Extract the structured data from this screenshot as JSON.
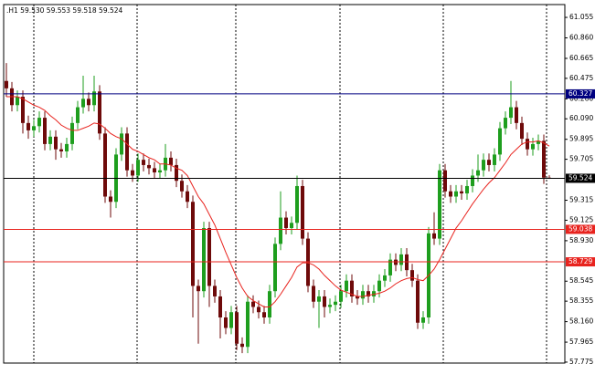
{
  "chart_data": {
    "type": "candlestick",
    "header": ".H1  59.530 59.553 59.518 59.524",
    "ylim": [
      57.766,
      61.177
    ],
    "yticks": [
      61.055,
      {
        "value": 60.86,
        "label": "60.860"
      },
      60.665,
      60.475,
      {
        "value": 60.28,
        "label": "60.280"
      },
      {
        "value": 60.09,
        "label": "60.090"
      },
      59.895,
      59.705,
      59.315,
      59.125,
      {
        "value": 58.93,
        "label": "58.930"
      },
      58.545,
      58.355,
      {
        "value": 58.16,
        "label": "58.160"
      },
      57.965,
      57.775
    ],
    "bull_color": "#1e9e1e",
    "bear_color": "#6e0a0a",
    "open": [
      60.45,
      60.38,
      60.22,
      60.3,
      60.05,
      59.98,
      60.02,
      60.1,
      59.85,
      59.92,
      59.8,
      59.78,
      59.85,
      60.05,
      60.2,
      60.28,
      60.22,
      60.35,
      59.95,
      59.35,
      59.3,
      59.75,
      59.95,
      59.6,
      59.55,
      59.7,
      59.65,
      59.62,
      59.58,
      59.6,
      59.72,
      59.65,
      59.5,
      59.4,
      59.3,
      58.5,
      58.45,
      59.05,
      58.5,
      58.4,
      58.2,
      58.1,
      58.25,
      57.95,
      57.92,
      58.35,
      58.3,
      58.25,
      58.2,
      58.45,
      58.9,
      59.15,
      59.05,
      59.1,
      59.45,
      58.95,
      58.5,
      58.35,
      58.4,
      58.3,
      58.32,
      58.35,
      58.45,
      58.55,
      58.4,
      58.38,
      58.45,
      58.4,
      58.45,
      58.55,
      58.6,
      58.75,
      58.7,
      58.8,
      58.65,
      58.55,
      58.15,
      58.2,
      59.0,
      58.95,
      59.6,
      59.4,
      59.35,
      59.4,
      59.38,
      59.45,
      59.55,
      59.6,
      59.7,
      59.65,
      59.75,
      60.0,
      60.1,
      60.2,
      60.05,
      59.9,
      59.8,
      59.85,
      59.88,
      59.53
    ],
    "high": [
      60.62,
      60.44,
      60.36,
      60.36,
      60.12,
      60.08,
      60.16,
      60.16,
      59.98,
      59.98,
      59.86,
      59.91,
      60.11,
      60.26,
      60.5,
      60.34,
      60.5,
      60.41,
      60.01,
      59.41,
      59.81,
      60.01,
      60.01,
      59.66,
      59.76,
      59.76,
      59.71,
      59.68,
      59.66,
      59.85,
      59.78,
      59.71,
      59.56,
      59.46,
      59.36,
      58.56,
      59.11,
      59.11,
      58.56,
      58.46,
      58.26,
      58.31,
      58.31,
      58.01,
      58.41,
      58.41,
      58.36,
      58.31,
      58.51,
      58.96,
      59.4,
      59.21,
      59.16,
      59.55,
      59.51,
      59.01,
      58.56,
      58.46,
      58.46,
      58.38,
      58.41,
      58.51,
      58.61,
      58.61,
      58.46,
      58.51,
      58.51,
      58.51,
      58.61,
      58.66,
      58.81,
      58.81,
      58.86,
      58.86,
      58.71,
      58.61,
      58.26,
      59.06,
      59.2,
      59.66,
      59.66,
      59.46,
      59.46,
      59.46,
      59.51,
      59.61,
      59.75,
      59.76,
      59.76,
      59.81,
      60.06,
      60.16,
      60.45,
      60.26,
      60.11,
      59.96,
      59.91,
      59.94,
      59.94,
      59.553
    ],
    "low": [
      60.3,
      60.16,
      60.16,
      59.95,
      59.9,
      59.92,
      59.96,
      59.79,
      59.79,
      59.7,
      59.72,
      59.72,
      59.79,
      59.99,
      60.14,
      60.16,
      60.16,
      59.89,
      59.29,
      59.15,
      59.24,
      59.69,
      59.54,
      59.49,
      59.49,
      59.59,
      59.56,
      59.52,
      59.52,
      59.54,
      59.59,
      59.44,
      59.34,
      59.24,
      58.2,
      57.95,
      58.39,
      58.3,
      58.34,
      58.0,
      58.04,
      58.04,
      57.89,
      57.86,
      57.86,
      58.24,
      58.19,
      58.14,
      58.14,
      58.39,
      58.84,
      58.99,
      58.99,
      59.04,
      58.89,
      58.44,
      58.29,
      58.1,
      58.2,
      58.24,
      58.26,
      58.29,
      58.39,
      58.34,
      58.32,
      58.32,
      58.34,
      58.34,
      58.39,
      58.49,
      58.54,
      58.64,
      58.64,
      58.59,
      58.49,
      58.09,
      58.09,
      58.14,
      58.89,
      58.89,
      59.34,
      59.29,
      59.29,
      59.32,
      59.32,
      59.39,
      59.49,
      59.54,
      59.59,
      59.59,
      59.69,
      59.94,
      60.04,
      59.99,
      59.84,
      59.74,
      59.74,
      59.79,
      59.47,
      59.518
    ],
    "close": [
      60.38,
      60.22,
      60.3,
      60.05,
      59.98,
      60.02,
      60.1,
      59.85,
      59.92,
      59.8,
      59.78,
      59.85,
      60.05,
      60.2,
      60.28,
      60.22,
      60.35,
      59.95,
      59.35,
      59.3,
      59.75,
      59.95,
      59.6,
      59.55,
      59.7,
      59.65,
      59.62,
      59.58,
      59.6,
      59.72,
      59.65,
      59.5,
      59.4,
      59.3,
      58.5,
      58.45,
      59.05,
      58.5,
      58.4,
      58.2,
      58.1,
      58.25,
      57.95,
      57.92,
      58.35,
      58.3,
      58.25,
      58.2,
      58.45,
      58.9,
      59.15,
      59.05,
      59.1,
      59.45,
      58.95,
      58.5,
      58.35,
      58.4,
      58.3,
      58.32,
      58.35,
      58.45,
      58.55,
      58.4,
      58.38,
      58.45,
      58.4,
      58.45,
      58.55,
      58.6,
      58.75,
      58.7,
      58.8,
      58.65,
      58.55,
      58.15,
      58.2,
      59.0,
      58.95,
      59.6,
      59.4,
      59.35,
      59.4,
      59.38,
      59.45,
      59.55,
      59.6,
      59.7,
      59.65,
      59.75,
      60.0,
      60.1,
      60.2,
      60.05,
      59.9,
      59.8,
      59.85,
      59.88,
      59.53,
      59.524
    ],
    "ma": {
      "color": "#e8231e",
      "values": [
        60.3,
        60.3,
        60.3,
        60.28,
        60.25,
        60.22,
        60.2,
        60.17,
        60.12,
        60.08,
        60.03,
        60.0,
        59.98,
        59.98,
        60.0,
        60.02,
        60.05,
        60.04,
        60.0,
        59.95,
        59.92,
        59.9,
        59.85,
        59.8,
        59.78,
        59.75,
        59.72,
        59.7,
        59.66,
        59.66,
        59.65,
        59.62,
        59.6,
        59.55,
        59.45,
        59.35,
        59.28,
        59.18,
        59.08,
        58.95,
        58.82,
        58.7,
        58.58,
        58.48,
        58.4,
        58.36,
        58.33,
        58.3,
        58.3,
        58.35,
        58.42,
        58.5,
        58.58,
        58.68,
        58.72,
        58.72,
        58.7,
        58.66,
        58.6,
        58.55,
        58.5,
        58.46,
        58.44,
        58.42,
        58.4,
        58.4,
        58.41,
        58.42,
        58.43,
        58.45,
        58.48,
        58.52,
        58.55,
        58.57,
        58.58,
        58.56,
        58.55,
        58.6,
        58.66,
        58.75,
        58.85,
        58.95,
        59.05,
        59.12,
        59.2,
        59.28,
        59.35,
        59.42,
        59.48,
        59.53,
        59.6,
        59.67,
        59.75,
        59.8,
        59.85,
        59.87,
        59.87,
        59.88,
        59.86,
        59.83
      ]
    },
    "hlines": [
      {
        "value": 60.327,
        "color": "#000080"
      },
      {
        "value": 59.524,
        "color": "#000000"
      },
      {
        "value": 59.038,
        "color": "#e8231e"
      },
      {
        "value": 58.729,
        "color": "#e8231e"
      }
    ]
  }
}
